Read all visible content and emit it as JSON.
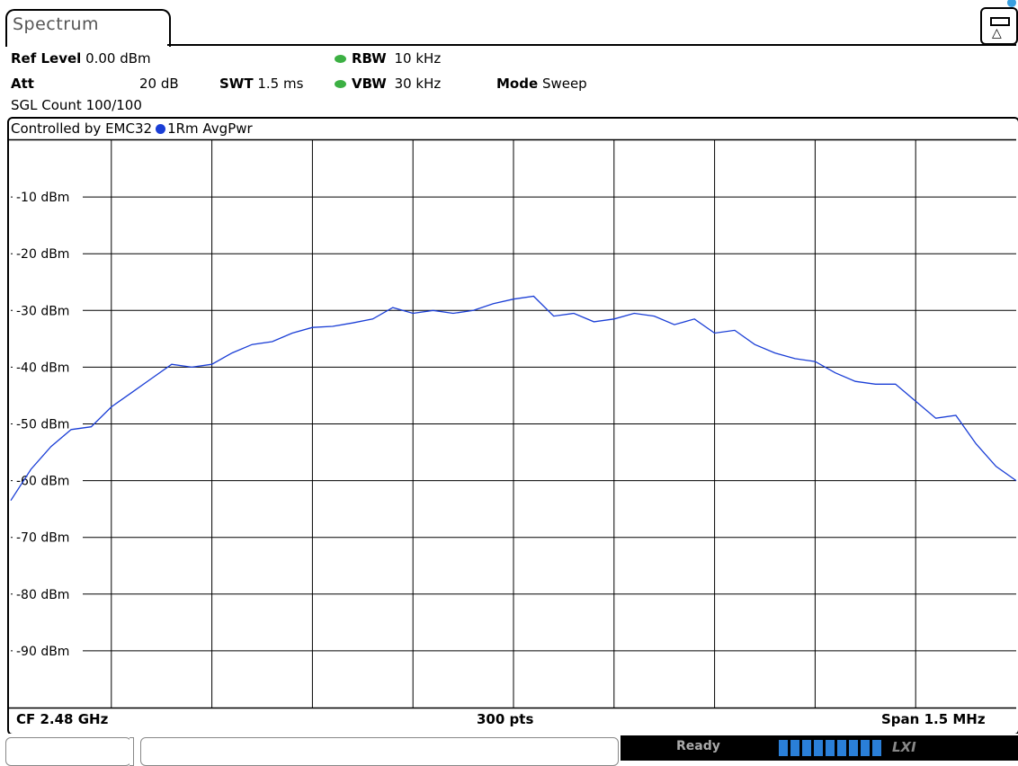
{
  "window": {
    "tab_title": "Spectrum"
  },
  "header": {
    "ref_level_label": "Ref Level",
    "ref_level_value": "0.00 dBm",
    "att_label": "Att",
    "att_value": "20 dB",
    "swt_label": "SWT",
    "swt_value": "1.5 ms",
    "rbw_label": "RBW",
    "rbw_value": "10 kHz",
    "vbw_label": "VBW",
    "vbw_value": "30 kHz",
    "mode_label": "Mode",
    "mode_value": "Sweep",
    "sgl_count": "SGL Count 100/100",
    "indicator_color": "#3cb043"
  },
  "graph": {
    "controlled_by": "Controlled by EMC32",
    "trace_label": "1Rm AvgPwr",
    "trace_color": "#1a3ed6"
  },
  "footer": {
    "cf": "CF 2.48 GHz",
    "pts": "300 pts",
    "span": "Span 1.5 MHz"
  },
  "status": {
    "ready": "Ready",
    "lxi": "LXI"
  },
  "chart_data": {
    "type": "line",
    "ylabel": "",
    "ylim": [
      -100,
      0
    ],
    "ytick_values": [
      -10,
      -20,
      -30,
      -40,
      -50,
      -60,
      -70,
      -80,
      -90
    ],
    "ytick_labels": [
      "-10 dBm",
      "-20 dBm",
      "-30 dBm",
      "-40 dBm",
      "-50 dBm",
      "-60 dBm",
      "-70 dBm",
      "-80 dBm",
      "-90 dBm"
    ],
    "x_divisions": 10,
    "grid": true,
    "x": [
      0,
      2,
      4,
      6,
      8,
      10,
      12,
      14,
      16,
      18,
      20,
      22,
      24,
      26,
      28,
      30,
      32,
      34,
      36,
      38,
      40,
      42,
      44,
      46,
      48,
      50,
      52,
      54,
      56,
      58,
      60,
      62,
      64,
      66,
      68,
      70,
      72,
      74,
      76,
      78,
      80,
      82,
      84,
      86,
      88,
      90,
      92,
      94,
      96,
      98,
      100
    ],
    "series": [
      {
        "values": [
          -63.5,
          -58.0,
          -54.0,
          -51.0,
          -50.5,
          -47.0,
          -44.5,
          -42.0,
          -39.5,
          -40.0,
          -39.5,
          -37.5,
          -36.0,
          -35.5,
          -34.0,
          -33.0,
          -32.8,
          -32.2,
          -31.5,
          -29.5,
          -30.5,
          -30.0,
          -30.5,
          -30.0,
          -28.8,
          -28.0,
          -27.5,
          -31.0,
          -30.5,
          -32.0,
          -31.5,
          -30.5,
          -31.0,
          -32.5,
          -31.5,
          -34.0,
          -33.5,
          -36.0,
          -37.5,
          -38.5,
          -39.0,
          -41.0,
          -42.5,
          -43.0,
          -43.0,
          -46.0,
          -49.0,
          -48.5,
          -53.5,
          -57.5,
          -60.0
        ]
      }
    ]
  }
}
